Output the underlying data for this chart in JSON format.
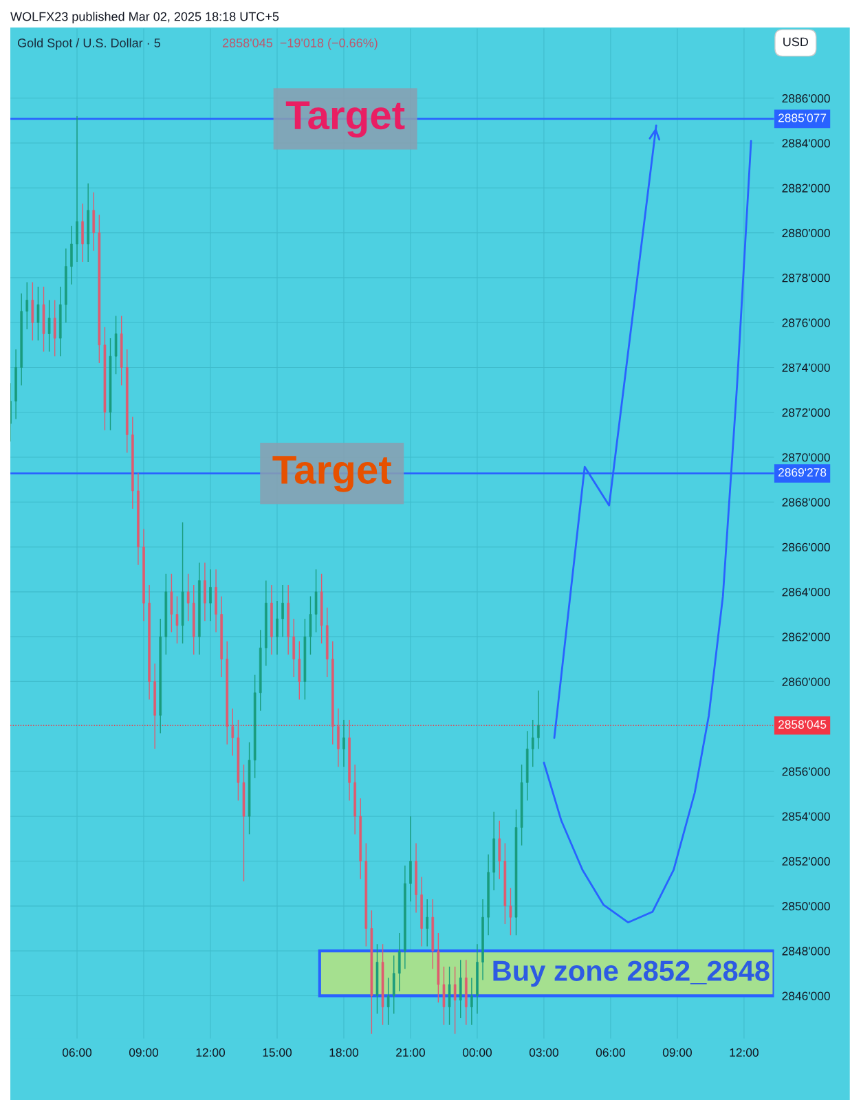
{
  "chart_data": {
    "type": "candlestick",
    "title": "WOLFX23 published Mar 02, 2025 18:18 UTC+5",
    "subtitle": "Gold Spot / U.S. Dollar · 5",
    "annotations": [
      "2858'045  −19'018 (−0.66%)",
      "USD",
      {
        "text": "Target",
        "x": "2025-02-28T18:04",
        "y": 2885077
      },
      {
        "text": "Target",
        "x": "2025-02-28T17:28",
        "y": 2869278
      }
    ],
    "xlim": [
      "2025-02-28T03:00",
      "2025-03-01T13:21"
    ],
    "ylim": [
      2844100,
      2889100
    ],
    "xticks": [
      {
        "value": "2025-02-28T06:00",
        "label": "06:00"
      },
      {
        "value": "2025-02-28T09:00",
        "label": "09:00"
      },
      {
        "value": "2025-02-28T12:00",
        "label": "12:00"
      },
      {
        "value": "2025-02-28T15:00",
        "label": "15:00"
      },
      {
        "value": "2025-02-28T18:00",
        "label": "18:00"
      },
      {
        "value": "2025-02-28T21:00",
        "label": "21:00"
      },
      {
        "value": "2025-03-01T00:00",
        "label": "00:00"
      },
      {
        "value": "2025-03-01T03:00",
        "label": "03:00"
      },
      {
        "value": "2025-03-01T06:00",
        "label": "06:00"
      },
      {
        "value": "2025-03-01T09:00",
        "label": "09:00"
      },
      {
        "value": "2025-03-01T12:00",
        "label": "12:00"
      }
    ],
    "yticks": [
      {
        "value": 2846000,
        "label": "2846'000"
      },
      {
        "value": 2848000,
        "label": "2848'000"
      },
      {
        "value": 2850000,
        "label": "2850'000"
      },
      {
        "value": 2852000,
        "label": "2852'000"
      },
      {
        "value": 2854000,
        "label": "2854'000"
      },
      {
        "value": 2856000,
        "label": "2856'000"
      },
      {
        "value": 2860000,
        "label": "2860'000"
      },
      {
        "value": 2862000,
        "label": "2862'000"
      },
      {
        "value": 2864000,
        "label": "2864'000"
      },
      {
        "value": 2866000,
        "label": "2866'000"
      },
      {
        "value": 2868000,
        "label": "2868'000"
      },
      {
        "value": 2870000,
        "label": "2870'000"
      },
      {
        "value": 2872000,
        "label": "2872'000"
      },
      {
        "value": 2874000,
        "label": "2874'000"
      },
      {
        "value": 2876000,
        "label": "2876'000"
      },
      {
        "value": 2878000,
        "label": "2878'000"
      },
      {
        "value": 2880000,
        "label": "2880'000"
      },
      {
        "value": 2882000,
        "label": "2882'000"
      },
      {
        "value": 2884000,
        "label": "2884'000"
      },
      {
        "value": 2886000,
        "label": "2886'000"
      }
    ],
    "grid": true,
    "ref_lines": [
      {
        "axis": "y",
        "value": 2885077,
        "label": "2885'077",
        "color": "#2962ff",
        "line_style": "solid"
      },
      {
        "axis": "y",
        "value": 2869278,
        "label": "2869'278",
        "color": "#2962ff",
        "line_style": "solid"
      },
      {
        "axis": "y",
        "value": 2858045,
        "label": "2858'045",
        "color": "#f23645",
        "line_style": "dotted"
      }
    ],
    "bands": [
      {
        "axis": "y",
        "from": 2846000,
        "to": 2848000,
        "label": "Buy zone 2852_2848",
        "color": "#a5e08f"
      }
    ],
    "series": [
      {
        "x": [
          "2025-02-28T03:00",
          "2025-02-28T03:15",
          "2025-02-28T03:30",
          "2025-02-28T03:45",
          "2025-02-28T04:00",
          "2025-02-28T04:15",
          "2025-02-28T04:30",
          "2025-02-28T04:45",
          "2025-02-28T05:00",
          "2025-02-28T05:15",
          "2025-02-28T05:30",
          "2025-02-28T05:45",
          "2025-02-28T06:00",
          "2025-02-28T06:15",
          "2025-02-28T06:30",
          "2025-02-28T06:45",
          "2025-02-28T07:00",
          "2025-02-28T07:15",
          "2025-02-28T07:30",
          "2025-02-28T07:45",
          "2025-02-28T08:00",
          "2025-02-28T08:15",
          "2025-02-28T08:30",
          "2025-02-28T08:45",
          "2025-02-28T09:00",
          "2025-02-28T09:15",
          "2025-02-28T09:30",
          "2025-02-28T09:45",
          "2025-02-28T10:00",
          "2025-02-28T10:15",
          "2025-02-28T10:30",
          "2025-02-28T10:45",
          "2025-02-28T11:00",
          "2025-02-28T11:15",
          "2025-02-28T11:30",
          "2025-02-28T11:45",
          "2025-02-28T12:00",
          "2025-02-28T12:15",
          "2025-02-28T12:30",
          "2025-02-28T12:45",
          "2025-02-28T13:00",
          "2025-02-28T13:15",
          "2025-02-28T13:30",
          "2025-02-28T13:45",
          "2025-02-28T14:00",
          "2025-02-28T14:15",
          "2025-02-28T14:30",
          "2025-02-28T14:45",
          "2025-02-28T15:00",
          "2025-02-28T15:15",
          "2025-02-28T15:30",
          "2025-02-28T15:45",
          "2025-02-28T16:00",
          "2025-02-28T16:15",
          "2025-02-28T16:30",
          "2025-02-28T16:45",
          "2025-02-28T17:00",
          "2025-02-28T17:15",
          "2025-02-28T17:30",
          "2025-02-28T17:45",
          "2025-02-28T18:00",
          "2025-02-28T18:15",
          "2025-02-28T18:30",
          "2025-02-28T18:45",
          "2025-02-28T19:00",
          "2025-02-28T19:15",
          "2025-02-28T19:30",
          "2025-02-28T19:45",
          "2025-02-28T20:00",
          "2025-02-28T20:15",
          "2025-02-28T20:30",
          "2025-02-28T20:45",
          "2025-02-28T21:00",
          "2025-02-28T21:15",
          "2025-02-28T21:30",
          "2025-02-28T21:45",
          "2025-02-28T22:00",
          "2025-02-28T22:15",
          "2025-02-28T22:30",
          "2025-02-28T22:45",
          "2025-02-28T23:00",
          "2025-02-28T23:15",
          "2025-02-28T23:30",
          "2025-02-28T23:45",
          "2025-03-01T00:00",
          "2025-03-01T00:15",
          "2025-03-01T00:30",
          "2025-03-01T00:45",
          "2025-03-01T01:00",
          "2025-03-01T01:15",
          "2025-03-01T01:30",
          "2025-03-01T01:45",
          "2025-03-01T02:00",
          "2025-03-01T02:15",
          "2025-03-01T02:30",
          "2025-03-01T02:45"
        ],
        "ohlc": [
          [
            2871500,
            2873300,
            2870700,
            2872500
          ],
          [
            2872500,
            2874800,
            2871700,
            2874000
          ],
          [
            2874000,
            2877300,
            2873200,
            2876500
          ],
          [
            2876500,
            2877800,
            2875700,
            2877000
          ],
          [
            2877000,
            2877800,
            2875200,
            2876000
          ],
          [
            2876000,
            2877600,
            2875200,
            2876800
          ],
          [
            2876800,
            2877600,
            2874700,
            2875500
          ],
          [
            2875500,
            2877000,
            2874700,
            2876200
          ],
          [
            2876200,
            2877000,
            2874500,
            2875300
          ],
          [
            2875300,
            2877600,
            2874500,
            2876800
          ],
          [
            2876800,
            2879300,
            2876000,
            2878500
          ],
          [
            2878500,
            2880300,
            2877700,
            2879500
          ],
          [
            2879500,
            2885200,
            2878700,
            2880500
          ],
          [
            2880500,
            2881300,
            2878700,
            2879500
          ],
          [
            2879500,
            2882200,
            2878700,
            2881000
          ],
          [
            2881000,
            2881800,
            2879200,
            2880000
          ],
          [
            2880000,
            2880800,
            2874200,
            2875000
          ],
          [
            2875000,
            2875800,
            2871200,
            2872000
          ],
          [
            2872000,
            2875300,
            2871200,
            2874500
          ],
          [
            2874500,
            2876300,
            2873700,
            2875500
          ],
          [
            2875500,
            2876300,
            2873200,
            2874000
          ],
          [
            2874000,
            2874800,
            2870200,
            2871000
          ],
          [
            2871000,
            2871800,
            2867700,
            2868500
          ],
          [
            2868500,
            2869300,
            2865200,
            2866000
          ],
          [
            2866000,
            2866800,
            2862700,
            2863500
          ],
          [
            2863500,
            2864300,
            2859200,
            2860000
          ],
          [
            2860000,
            2860800,
            2857000,
            2858500
          ],
          [
            2858500,
            2862800,
            2857700,
            2862000
          ],
          [
            2862000,
            2864800,
            2861200,
            2864000
          ],
          [
            2864000,
            2864800,
            2862200,
            2863000
          ],
          [
            2863000,
            2863800,
            2861700,
            2862500
          ],
          [
            2862500,
            2867100,
            2861700,
            2864000
          ],
          [
            2864000,
            2864800,
            2862700,
            2863500
          ],
          [
            2863500,
            2864300,
            2861200,
            2862000
          ],
          [
            2862000,
            2865300,
            2861200,
            2864500
          ],
          [
            2864500,
            2865300,
            2862700,
            2863500
          ],
          [
            2863500,
            2865000,
            2862700,
            2864200
          ],
          [
            2864200,
            2865000,
            2862200,
            2863000
          ],
          [
            2863000,
            2863800,
            2860200,
            2861000
          ],
          [
            2861000,
            2861800,
            2857200,
            2858000
          ],
          [
            2858000,
            2858800,
            2856700,
            2857500
          ],
          [
            2857500,
            2858300,
            2854700,
            2855500
          ],
          [
            2855500,
            2856300,
            2851100,
            2854000
          ],
          [
            2854000,
            2857300,
            2853200,
            2856500
          ],
          [
            2856500,
            2860300,
            2855700,
            2859500
          ],
          [
            2859500,
            2862300,
            2858700,
            2861500
          ],
          [
            2861500,
            2864500,
            2860700,
            2863500
          ],
          [
            2863500,
            2864300,
            2861200,
            2862000
          ],
          [
            2862000,
            2863600,
            2861200,
            2862800
          ],
          [
            2862800,
            2864300,
            2862000,
            2863500
          ],
          [
            2863500,
            2864300,
            2861200,
            2862000
          ],
          [
            2862000,
            2862800,
            2860200,
            2861000
          ],
          [
            2861000,
            2861800,
            2859200,
            2860000
          ],
          [
            2860000,
            2862800,
            2859200,
            2862000
          ],
          [
            2862000,
            2863800,
            2861200,
            2863000
          ],
          [
            2863000,
            2865000,
            2862200,
            2864000
          ],
          [
            2864000,
            2864800,
            2861700,
            2862500
          ],
          [
            2862500,
            2863300,
            2860200,
            2861000
          ],
          [
            2861000,
            2861800,
            2857200,
            2858000
          ],
          [
            2858000,
            2858800,
            2856200,
            2857000
          ],
          [
            2857000,
            2858300,
            2856200,
            2857500
          ],
          [
            2857500,
            2858300,
            2854700,
            2855500
          ],
          [
            2855500,
            2856300,
            2853200,
            2854000
          ],
          [
            2854000,
            2854800,
            2851200,
            2852000
          ],
          [
            2852000,
            2852800,
            2848200,
            2849000
          ],
          [
            2849000,
            2849800,
            2844300,
            2846000
          ],
          [
            2846000,
            2848300,
            2845200,
            2847500
          ],
          [
            2847500,
            2848300,
            2844700,
            2845500
          ],
          [
            2845500,
            2846800,
            2844700,
            2846000
          ],
          [
            2846000,
            2847800,
            2845200,
            2847000
          ],
          [
            2847000,
            2848800,
            2846200,
            2848000
          ],
          [
            2848000,
            2851800,
            2847200,
            2851000
          ],
          [
            2851000,
            2854000,
            2850200,
            2852000
          ],
          [
            2852000,
            2852800,
            2849700,
            2850500
          ],
          [
            2850500,
            2851300,
            2848200,
            2849000
          ],
          [
            2849000,
            2850300,
            2848200,
            2849500
          ],
          [
            2849500,
            2850300,
            2847200,
            2848000
          ],
          [
            2848000,
            2848800,
            2845700,
            2846500
          ],
          [
            2846500,
            2847300,
            2844700,
            2845500
          ],
          [
            2845500,
            2847300,
            2844700,
            2846500
          ],
          [
            2846500,
            2847300,
            2844300,
            2845800
          ],
          [
            2845800,
            2847600,
            2845000,
            2846800
          ],
          [
            2846800,
            2847600,
            2844700,
            2845500
          ],
          [
            2845500,
            2846800,
            2844700,
            2846000
          ],
          [
            2846000,
            2848300,
            2845200,
            2847500
          ],
          [
            2847500,
            2850300,
            2846700,
            2849500
          ],
          [
            2849500,
            2852300,
            2848700,
            2851500
          ],
          [
            2851500,
            2854200,
            2850700,
            2853000
          ],
          [
            2853000,
            2853800,
            2851200,
            2852000
          ],
          [
            2852000,
            2852800,
            2849200,
            2850000
          ],
          [
            2850000,
            2850800,
            2848700,
            2849500
          ],
          [
            2849500,
            2854300,
            2848700,
            2853500
          ],
          [
            2853500,
            2856300,
            2852700,
            2855500
          ],
          [
            2855500,
            2857800,
            2854700,
            2857000
          ],
          [
            2857000,
            2858300,
            2856200,
            2857500
          ],
          [
            2857500,
            2859600,
            2857000,
            2858045
          ]
        ]
      },
      {
        "type": "line",
        "color": "#2962ff",
        "x": [
          "2025-03-01T03:28",
          "2025-03-01T04:50",
          "2025-03-01T05:56",
          "2025-03-01T08:03"
        ],
        "values": [
          2857490,
          2869570,
          2867850,
          2884780
        ]
      },
      {
        "type": "line",
        "color": "#2962ff",
        "x": [
          "2025-03-01T03:00",
          "2025-03-01T03:47",
          "2025-03-01T04:44",
          "2025-03-01T05:41",
          "2025-03-01T06:47",
          "2025-03-01T07:53",
          "2025-03-01T08:50",
          "2025-03-01T09:47",
          "2025-03-01T10:25",
          "2025-03-01T11:03",
          "2025-03-01T11:41",
          "2025-03-01T12:19"
        ],
        "values": [
          2856390,
          2853800,
          2851610,
          2850050,
          2849270,
          2849740,
          2851610,
          2855050,
          2858490,
          2863800,
          2873160,
          2884090
        ]
      }
    ]
  }
}
